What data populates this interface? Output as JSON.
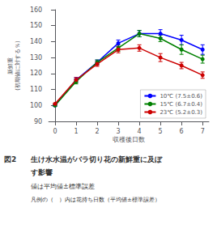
{
  "chart_data": {
    "type": "line",
    "title": [
      "図2",
      "生け水水温がバラ切り花の新鮮重に及ぼ",
      "す影響"
    ],
    "annotations": [
      "値は平均値±標準誤差",
      "凡例の（　）内は花持ち日数（平均値±標準誤差）"
    ],
    "xlabel": "収穫後日数",
    "ylabel": "新鮮重\n(初期値に対する％)",
    "x": [
      0,
      1,
      2,
      3,
      4,
      5,
      6,
      7
    ],
    "series": [
      {
        "name": "10℃ (7.5±0.6)",
        "color": "#0000ff",
        "values": [
          100,
          116,
          127,
          139,
          145,
          145,
          141,
          135
        ],
        "error": [
          0.5,
          1.5,
          1.5,
          2.0,
          2.0,
          2.5,
          3.0,
          3.0
        ]
      },
      {
        "name": "15℃ (6.7±0.4)",
        "color": "#008000",
        "values": [
          100,
          115,
          127,
          136,
          145,
          142,
          135,
          129
        ],
        "error": [
          0.5,
          1.5,
          1.5,
          2.0,
          2.0,
          2.0,
          3.0,
          2.5
        ]
      },
      {
        "name": "23℃ (5.2±0.3)",
        "color": "#cc0000",
        "values": [
          101,
          116,
          126,
          135,
          136,
          130,
          125,
          119
        ],
        "error": [
          0.5,
          1.5,
          1.5,
          2.0,
          2.0,
          2.5,
          2.0,
          2.0
        ]
      }
    ],
    "xlim": [
      -0.3,
      7.3
    ],
    "xticks": [
      0,
      1,
      2,
      3,
      4,
      5,
      6,
      7
    ],
    "ylim": [
      90,
      160
    ],
    "yticks": [
      90,
      100,
      110,
      120,
      130,
      140,
      150,
      160
    ],
    "marker": "circle",
    "legend": "lower right",
    "grid": false
  }
}
